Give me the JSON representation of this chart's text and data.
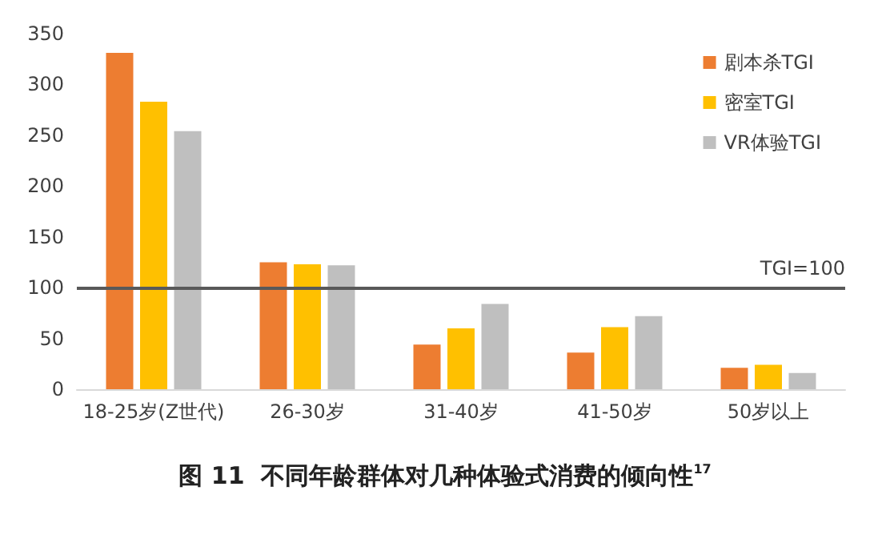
{
  "chart_data": {
    "type": "bar",
    "title": "图 11  不同年龄群体对几种体验式消费的倾向性$^{17}$",
    "categories": [
      "18-25岁(Z世代)",
      "26-30岁",
      "31-40岁",
      "41-50岁",
      "50岁以上"
    ],
    "series": [
      {
        "name": "剧本杀TGI",
        "color": "#ed7d31",
        "values": [
          331,
          125,
          44,
          36,
          21
        ]
      },
      {
        "name": "密室TGI",
        "color": "#ffc000",
        "values": [
          283,
          123,
          60,
          61,
          24
        ]
      },
      {
        "name": "VR体验TGI",
        "color": "#bfbfbf",
        "values": [
          254,
          122,
          84,
          72,
          16
        ]
      }
    ],
    "ylim": [
      0,
      350
    ],
    "yticks": [
      0,
      50,
      100,
      150,
      200,
      250,
      300,
      350
    ],
    "grid": false,
    "legend": "top right",
    "ref_lines": [
      {
        "axis": "y",
        "value": 100,
        "label": "TGI=100",
        "color": "#595959"
      }
    ]
  }
}
